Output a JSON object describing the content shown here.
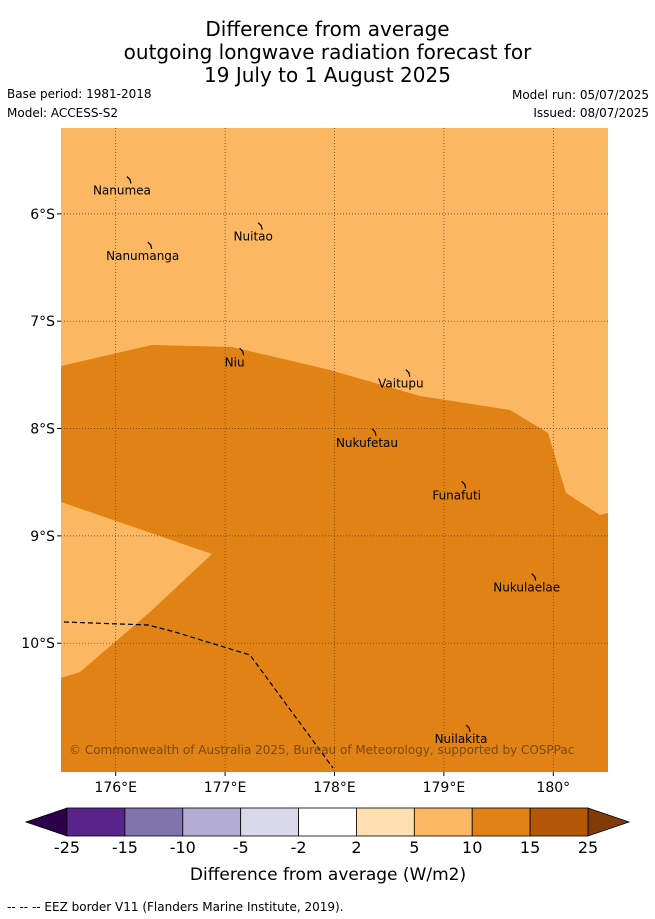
{
  "title": {
    "line1": "Difference from average",
    "line2": "outgoing longwave radiation forecast for",
    "line3": "19 July to 1 August 2025"
  },
  "meta": {
    "base_period": "Base period: 1981-2018",
    "model": "Model: ACCESS-S2",
    "model_run": "Model run: 05/07/2025",
    "issued": "Issued: 08/07/2025"
  },
  "map": {
    "lon_range": [
      175.5,
      180.5
    ],
    "lat_range": [
      -11.2,
      -5.2
    ],
    "lon_ticks": [
      {
        "value": 176,
        "label": "176°E"
      },
      {
        "value": 177,
        "label": "177°E"
      },
      {
        "value": 178,
        "label": "178°E"
      },
      {
        "value": 179,
        "label": "179°E"
      },
      {
        "value": 180,
        "label": "180°"
      }
    ],
    "lat_ticks": [
      {
        "value": -6,
        "label": "6°S"
      },
      {
        "value": -7,
        "label": "7°S"
      },
      {
        "value": -8,
        "label": "8°S"
      },
      {
        "value": -9,
        "label": "9°S"
      },
      {
        "value": -10,
        "label": "10°S"
      }
    ],
    "places": [
      {
        "name": "Nanumea",
        "lon": 176.13,
        "lat": -5.68
      },
      {
        "name": "Nuitao",
        "lon": 177.33,
        "lat": -6.11
      },
      {
        "name": "Nanumanga",
        "lon": 176.32,
        "lat": -6.29
      },
      {
        "name": "Niu",
        "lon": 177.16,
        "lat": -7.28
      },
      {
        "name": "Vaitupu",
        "lon": 178.68,
        "lat": -7.48
      },
      {
        "name": "Nukufetau",
        "lon": 178.37,
        "lat": -8.03
      },
      {
        "name": "Funafuti",
        "lon": 179.19,
        "lat": -8.52
      },
      {
        "name": "Nukulaelae",
        "lon": 179.83,
        "lat": -9.38
      },
      {
        "name": "Nuilakita",
        "lon": 179.23,
        "lat": -10.79
      }
    ],
    "credit": "© Commonwealth of Australia 2025, Bureau of Meteorology, supported by COSPPac"
  },
  "colorbar": {
    "label": "Difference from average (W/m2)",
    "ticks": [
      "-25",
      "-15",
      "-10",
      "-5",
      "-2",
      "2",
      "5",
      "10",
      "15",
      "25"
    ],
    "colors": [
      "#59248c",
      "#8173ae",
      "#b2abd2",
      "#d8daeb",
      "#ffffff",
      "#fedfb0",
      "#fbb761",
      "#e08214",
      "#b35807"
    ],
    "extend_low_color": "#2d004b",
    "extend_high_color": "#7f3b08"
  },
  "legend": {
    "eez_text": "-- -- -- EEZ border V11 (Flanders Marine Institute, 2019)."
  },
  "colors": {
    "light_orange": "#fbb761",
    "dark_orange": "#e08214",
    "grid": "#5a3a10"
  }
}
